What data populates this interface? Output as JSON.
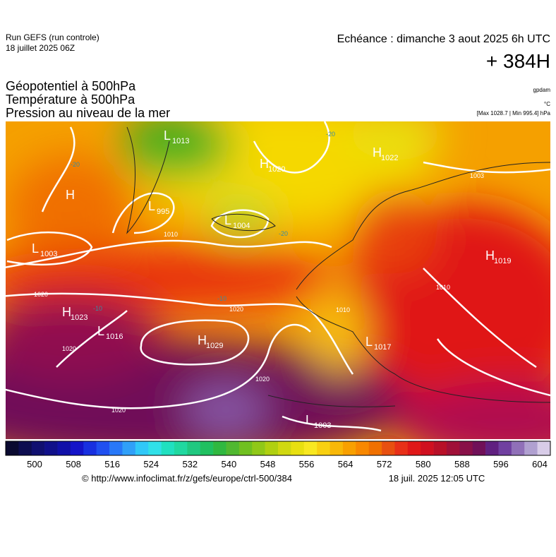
{
  "header": {
    "run": "Run GEFS (run controle)",
    "run_date": "18 juillet 2025 06Z",
    "echeance": "Echéance : dimanche 3 aout 2025 6h UTC",
    "lead": "+ 384H"
  },
  "titles": [
    "Géopotentiel à 500hPa",
    "Température à 500hPa",
    "Pression au niveau de la mer"
  ],
  "units": [
    "gpdam",
    "°C",
    "[Max 1028.7 | Min 995.4] hPa"
  ],
  "map_labels": [
    {
      "symbol": "L",
      "value": "1013"
    },
    {
      "symbol": "H",
      "value": "1022"
    },
    {
      "symbol": "H",
      "value": "1020"
    },
    {
      "symbol": "H"
    },
    {
      "symbol": "L",
      "value": "995"
    },
    {
      "symbol": "L",
      "value": "1004"
    },
    {
      "symbol": "L",
      "value": "1003"
    },
    {
      "symbol": "H",
      "value": "1019"
    },
    {
      "symbol": "H",
      "value": "1023"
    },
    {
      "symbol": "L",
      "value": "1016"
    },
    {
      "symbol": "H",
      "value": "1029"
    },
    {
      "symbol": "L",
      "value": "1017"
    },
    {
      "symbol": "L",
      "value": "1003"
    }
  ],
  "isobar_labels": [
    "1020",
    "1020",
    "1020",
    "1020",
    "1020",
    "1010",
    "1010",
    "1010",
    "1003"
  ],
  "temperature_labels": [
    "-20",
    "-20",
    "-20",
    "-10",
    "-10"
  ],
  "colorbar": {
    "colors": [
      "#0a0a30",
      "#0d0d50",
      "#101070",
      "#10108a",
      "#1010a8",
      "#1414c8",
      "#1830e0",
      "#2050f0",
      "#2878f8",
      "#30a0f8",
      "#30c8f8",
      "#30e0e8",
      "#20e0c0",
      "#20d8a0",
      "#20c880",
      "#20c060",
      "#30b840",
      "#50b830",
      "#70c020",
      "#90c818",
      "#b0d010",
      "#d0d810",
      "#e8e010",
      "#f8e820",
      "#f8d010",
      "#f8b808",
      "#f8a000",
      "#f88800",
      "#f07000",
      "#e85010",
      "#e83018",
      "#e01818",
      "#d01020",
      "#b81028",
      "#a01038",
      "#881048",
      "#701058",
      "#602080",
      "#7040a0",
      "#9070b8",
      "#b0a0d0",
      "#d8cce8"
    ],
    "ticks": [
      500,
      508,
      516,
      524,
      532,
      540,
      548,
      556,
      564,
      572,
      580,
      588,
      596,
      604
    ]
  },
  "footer": {
    "url": "© http://www.infoclimat.fr/z/gefs/europe/ctrl-500/384",
    "date": "18 juil. 2025 12:05 UTC"
  }
}
